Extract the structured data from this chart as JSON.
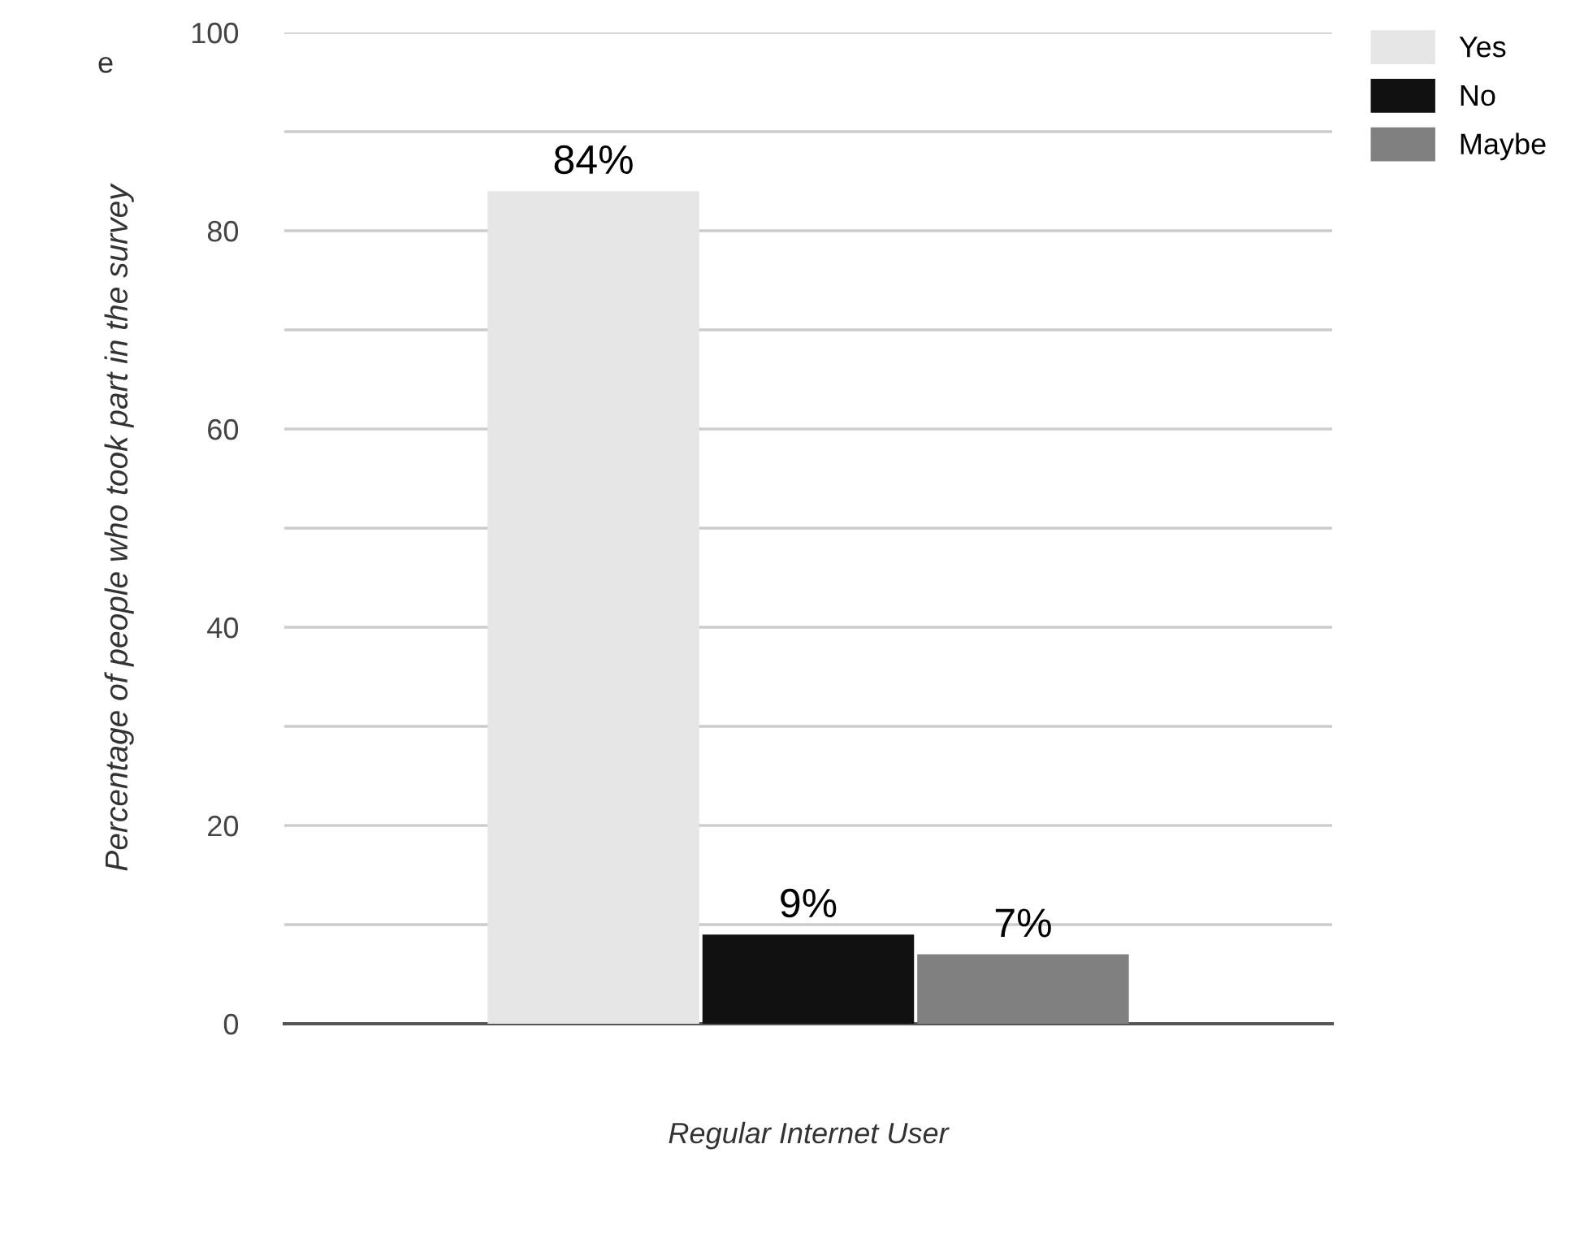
{
  "chart_data": {
    "type": "bar",
    "xlabel": "Regular Internet User",
    "ylabel": "Percentage of people who took part in the survey",
    "categories": [
      null
    ],
    "series": [
      {
        "name": "Yes",
        "color": "#e6e6e6",
        "values": [
          84
        ],
        "value_labels": [
          "84%"
        ]
      },
      {
        "name": "No",
        "color": "#111111",
        "values": [
          9
        ],
        "value_labels": [
          "9%"
        ]
      },
      {
        "name": "Maybe",
        "color": "#808080",
        "values": [
          7
        ],
        "value_labels": [
          "7%"
        ]
      }
    ],
    "ylim": [
      0,
      100
    ],
    "yticks": [
      0,
      {
        "value": 10,
        "label": null
      },
      20,
      {
        "value": 30,
        "label": null
      },
      40,
      {
        "value": 50,
        "label": null
      },
      60,
      {
        "value": 70,
        "label": null
      },
      80,
      {
        "value": 90,
        "label": null
      },
      100
    ],
    "grid": "y",
    "legend": "top right",
    "annotations": [
      "e"
    ]
  }
}
